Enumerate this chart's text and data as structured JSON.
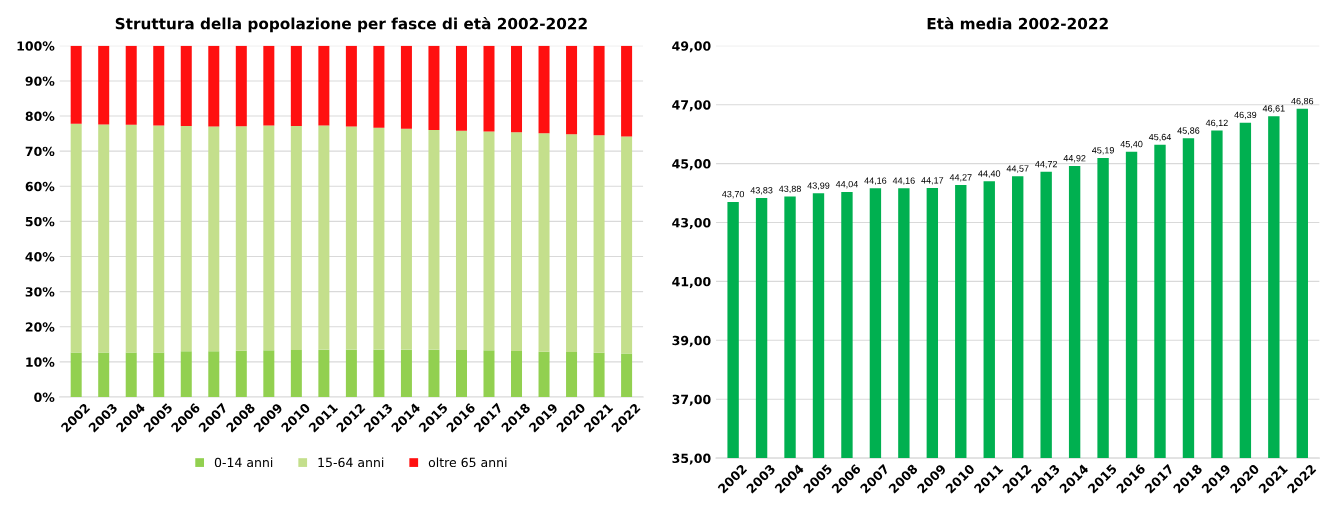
{
  "chart_data": [
    {
      "type": "bar",
      "title": "Struttura della popolazione per fasce di età 2002-2022",
      "stacked": true,
      "categories": [
        "2002",
        "2003",
        "2004",
        "2005",
        "2006",
        "2007",
        "2008",
        "2009",
        "2010",
        "2011",
        "2012",
        "2013",
        "2014",
        "2015",
        "2016",
        "2017",
        "2018",
        "2019",
        "2020",
        "2021",
        "2022"
      ],
      "series": [
        {
          "name": "0-14 anni",
          "color": "#92d050",
          "values": [
            12.7,
            12.7,
            12.7,
            12.7,
            13.0,
            13.0,
            13.2,
            13.3,
            13.4,
            13.5,
            13.5,
            13.5,
            13.5,
            13.5,
            13.4,
            13.3,
            13.1,
            12.9,
            12.8,
            12.6,
            12.4
          ]
        },
        {
          "name": "15-64 anni",
          "color": "#c4df8c",
          "values": [
            65.1,
            64.9,
            64.8,
            64.6,
            64.2,
            64.0,
            63.9,
            64.0,
            63.8,
            63.8,
            63.5,
            63.2,
            62.9,
            62.5,
            62.4,
            62.3,
            62.3,
            62.2,
            62.0,
            61.9,
            61.8
          ]
        },
        {
          "name": "oltre 65 anni",
          "color": "#ff1010",
          "values": [
            22.2,
            22.4,
            22.5,
            22.7,
            22.8,
            23.0,
            22.9,
            22.7,
            22.8,
            22.7,
            23.0,
            23.3,
            23.6,
            24.0,
            24.2,
            24.4,
            24.6,
            24.9,
            25.2,
            25.5,
            25.8
          ]
        }
      ],
      "ylim": [
        0,
        100
      ],
      "yticks": [
        {
          "value": 0,
          "label": "0%"
        },
        {
          "value": 10,
          "label": "10%"
        },
        {
          "value": 20,
          "label": "20%"
        },
        {
          "value": 30,
          "label": "30%"
        },
        {
          "value": 40,
          "label": "40%"
        },
        {
          "value": 50,
          "label": "50%"
        },
        {
          "value": 60,
          "label": "60%"
        },
        {
          "value": 70,
          "label": "70%"
        },
        {
          "value": 80,
          "label": "80%"
        },
        {
          "value": 90,
          "label": "90%"
        },
        {
          "value": 100,
          "label": "100%"
        }
      ],
      "grid": "y",
      "legend": "bottom"
    },
    {
      "type": "bar",
      "title": "Età media 2002-2022",
      "categories": [
        "2002",
        "2003",
        "2004",
        "2005",
        "2006",
        "2007",
        "2008",
        "2009",
        "2010",
        "2011",
        "2012",
        "2013",
        "2014",
        "2015",
        "2016",
        "2017",
        "2018",
        "2019",
        "2020",
        "2021",
        "2022"
      ],
      "series": [
        {
          "color": "#00b050",
          "values": [
            43.7,
            43.83,
            43.88,
            43.99,
            44.04,
            44.16,
            44.16,
            44.17,
            44.27,
            44.4,
            44.57,
            44.72,
            44.92,
            45.19,
            45.4,
            45.64,
            45.86,
            46.12,
            46.39,
            46.61,
            46.86
          ],
          "value_labels": [
            "43,70",
            "43,83",
            "43,88",
            "43,99",
            "44,04",
            "44,16",
            "44,16",
            "44,17",
            "44,27",
            "44,40",
            "44,57",
            "44,72",
            "44,92",
            "45,19",
            "45,40",
            "45,64",
            "45,86",
            "46,12",
            "46,39",
            "46,61",
            "46,86"
          ]
        }
      ],
      "ylim": [
        35,
        49
      ],
      "yticks": [
        {
          "value": 35,
          "label": "35,00"
        },
        {
          "value": 37,
          "label": "37,00"
        },
        {
          "value": 39,
          "label": "39,00"
        },
        {
          "value": 41,
          "label": "41,00"
        },
        {
          "value": 43,
          "label": "43,00"
        },
        {
          "value": 45,
          "label": "45,00"
        },
        {
          "value": 47,
          "label": "47,00"
        },
        {
          "value": 49,
          "label": "49,00"
        }
      ],
      "grid": "y",
      "legend": false
    }
  ]
}
